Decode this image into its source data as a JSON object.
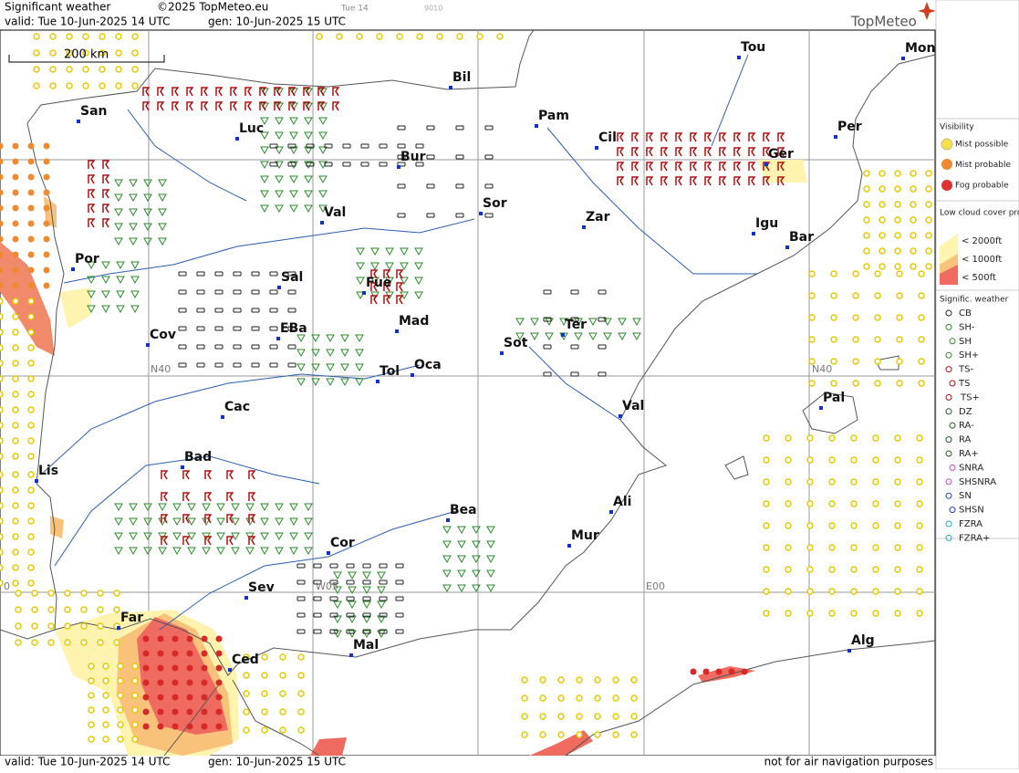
{
  "header": {
    "title": "Significant weather",
    "copyright": "©2025 TopMeteo.eu",
    "valid": "valid:  Tue  10-Jun-2025  14 UTC",
    "gen": "gen: 10-Jun-2025 15 UTC",
    "run": "Tue 14",
    "code": "9010",
    "logo": "TopMeteo"
  },
  "scale": "200 km",
  "grid_labels": [
    "N40",
    "N40",
    "W05",
    "E00",
    "0"
  ],
  "cities": [
    "San",
    "Luc",
    "Bil",
    "Pam",
    "Cil",
    "Tou",
    "Mon",
    "Per",
    "Ger",
    "Bur",
    "Sor",
    "Zar",
    "Igu",
    "Bar",
    "Val",
    "Por",
    "Sal",
    "Fue",
    "Mad",
    "EBa",
    "Cov",
    "Tol",
    "Oca",
    "Sot",
    "Ter",
    "Val",
    "Pal",
    "Cac",
    "Bad",
    "Lis",
    "Bea",
    "Ali",
    "Mur",
    "Cor",
    "Sev",
    "Far",
    "Ced",
    "Mal",
    "Alg"
  ],
  "legend": {
    "visibility": {
      "title": "Visibility",
      "items": [
        "Mist possible",
        "Mist probable",
        "Fog probable"
      ]
    },
    "low_cloud": {
      "title": "Low cloud cover probable",
      "items": [
        "< 2000ft",
        "< 1000ft",
        "<  500ft"
      ]
    },
    "weather": {
      "title": "Signific. weather",
      "items": [
        "CB",
        "SH-",
        "SH",
        "SH+",
        "TS-",
        "TS",
        "TS+",
        "DZ",
        "RA-",
        "RA",
        "RA+",
        "SNRA",
        "SHSNRA",
        "SN",
        "SHSN",
        "FZRA",
        "FZRA+"
      ]
    }
  },
  "footer": {
    "valid": "valid:  Tue  10-Jun-2025  14 UTC",
    "gen": "gen: 10-Jun-2025 15 UTC",
    "note": "not for air navigation purposes"
  }
}
